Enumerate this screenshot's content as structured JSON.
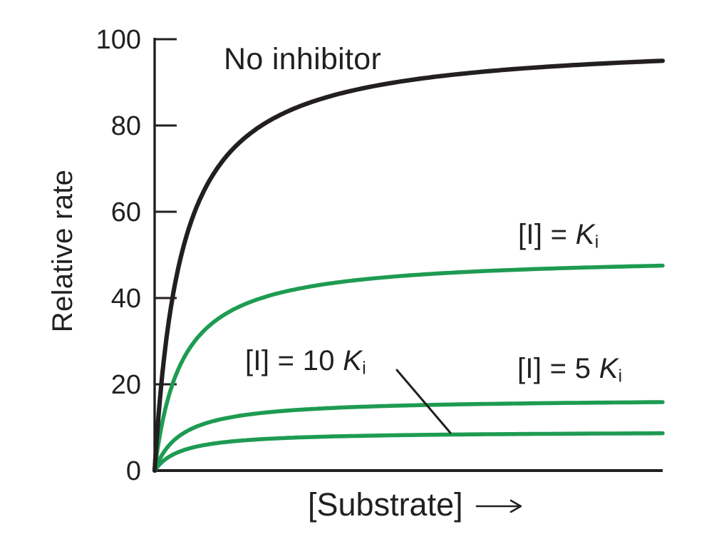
{
  "figure": {
    "background": "#ffffff",
    "ink": "#231f20",
    "green": "#1e9b52"
  },
  "chart_data": {
    "type": "line",
    "title": "",
    "xlabel": "[Substrate]",
    "x_arrow_icon": "long-right-arrow",
    "ylabel": "Relative rate",
    "ylim": [
      0,
      100
    ],
    "yticks": [
      0,
      20,
      40,
      60,
      80,
      100
    ],
    "x_tick_labels": "none (substrate axis unscaled, increasing left to right)",
    "grid": false,
    "legend_position": "inline curve labels",
    "curve_model": "v = vmax_app * s / (km + s), s in units of Km (noncompetitive inhibition, Km unchanged)",
    "x_range_km": [
      0,
      19
    ],
    "x_km": [
      0,
      0.1,
      0.2,
      0.3,
      0.5,
      0.75,
      1,
      1.25,
      1.5,
      2,
      2.5,
      3,
      4,
      5,
      6,
      8,
      10,
      12,
      14,
      16,
      19
    ],
    "series": [
      {
        "id": "no_inhibitor",
        "label": "No inhibitor",
        "vmax_app": 100,
        "km": 1,
        "color": "#231f20",
        "values": [
          0,
          9.1,
          16.7,
          23.1,
          33.3,
          42.9,
          50,
          55.6,
          60,
          66.7,
          71.4,
          75,
          80,
          83.3,
          85.7,
          88.9,
          90.9,
          92.3,
          93.3,
          94.1,
          95
        ]
      },
      {
        "id": "ki",
        "label": "[I] = Ki",
        "vmax_app": 50,
        "km": 1,
        "color": "#1e9b52",
        "values": [
          0,
          4.5,
          8.3,
          11.5,
          16.7,
          21.4,
          25,
          27.8,
          30,
          33.3,
          35.7,
          37.5,
          40,
          41.7,
          42.9,
          44.4,
          45.5,
          46.2,
          46.7,
          47.1,
          47.5
        ]
      },
      {
        "id": "ki5",
        "label": "[I] = 5 Ki",
        "vmax_app": 16.7,
        "km": 1,
        "color": "#1e9b52",
        "values": [
          0,
          1.5,
          2.8,
          3.9,
          5.6,
          7.2,
          8.4,
          9.3,
          10,
          11.1,
          11.9,
          12.5,
          13.4,
          13.9,
          14.3,
          14.8,
          15.2,
          15.4,
          15.6,
          15.7,
          15.9
        ]
      },
      {
        "id": "ki10",
        "label": "[I] = 10 Ki",
        "vmax_app": 9.1,
        "km": 1,
        "color": "#1e9b52",
        "values": [
          0,
          0.8,
          1.5,
          2.1,
          3,
          3.9,
          4.6,
          5.1,
          5.5,
          6.1,
          6.5,
          6.8,
          7.3,
          7.6,
          7.8,
          8.1,
          8.3,
          8.4,
          8.5,
          8.6,
          8.6
        ]
      }
    ],
    "annotations": [
      {
        "type": "leader-line",
        "from_label": "[I] = 10 Ki",
        "to_series": "ki10"
      }
    ]
  },
  "curve_labels": {
    "no_inhibitor": "No inhibitor",
    "ki": {
      "prefix": "[I] = ",
      "symbol": "K",
      "subscript": "i"
    },
    "ki10": {
      "prefix": "[I] = 10 ",
      "symbol": "K",
      "subscript": "i"
    },
    "ki5": {
      "prefix": "[I] = 5 ",
      "symbol": "K",
      "subscript": "i"
    }
  }
}
